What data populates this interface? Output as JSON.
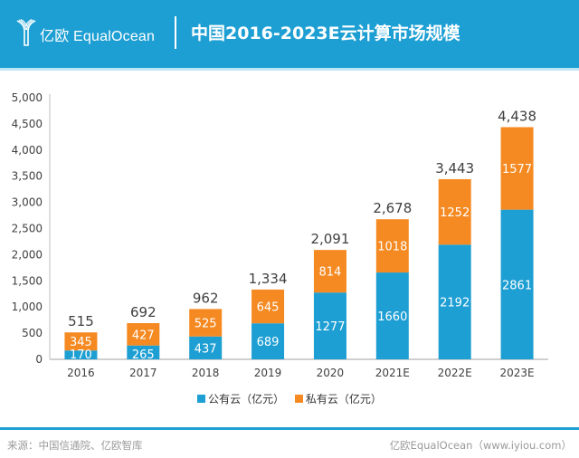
{
  "header": {
    "brand": "亿欧 EqualOcean",
    "title": "中国2016-2023E云计算市场规模"
  },
  "colors": {
    "header_bg": "#1e9fd3",
    "public_cloud": "#1e9fd3",
    "private_cloud": "#f58a22",
    "axis": "#bfbfbf",
    "text": "#404040"
  },
  "chart_data": {
    "type": "bar",
    "stacked": true,
    "title": "中国2016-2023E云计算市场规模",
    "xlabel": "",
    "ylabel": "",
    "ylim": [
      0,
      5000
    ],
    "yticks": [
      0,
      500,
      1000,
      1500,
      2000,
      2500,
      3000,
      3500,
      4000,
      4500,
      5000
    ],
    "ytick_labels": [
      "0",
      "500",
      "1,000",
      "1,500",
      "2,000",
      "2,500",
      "3,000",
      "3,500",
      "4,000",
      "4,500",
      "5,000"
    ],
    "grid": false,
    "categories": [
      "2016",
      "2017",
      "2018",
      "2019",
      "2020",
      "2021E",
      "2022E",
      "2023E"
    ],
    "series": [
      {
        "name": "公有云（亿元）",
        "color": "#1e9fd3",
        "values": [
          170,
          265,
          437,
          689,
          1277,
          1660,
          2192,
          2861
        ]
      },
      {
        "name": "私有云（亿元）",
        "color": "#f58a22",
        "values": [
          345,
          427,
          525,
          645,
          814,
          1018,
          1252,
          1577
        ]
      }
    ],
    "totals": [
      515,
      692,
      962,
      1334,
      2091,
      2678,
      3443,
      4438
    ],
    "total_labels": [
      "515",
      "692",
      "962",
      "1,334",
      "2,091",
      "2,678",
      "3,443",
      "4,438"
    ],
    "legend": {
      "placement": "bottom-center",
      "entries": [
        "公有云（亿元）",
        "私有云（亿元）"
      ]
    }
  },
  "footer": {
    "source": "来源：中国信通院、亿欧智库",
    "credit": "亿欧EqualOcean（www.iyiou.com）"
  }
}
